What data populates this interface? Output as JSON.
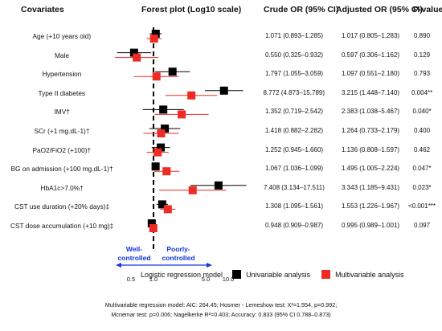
{
  "headers": {
    "covariates": "Covariates",
    "forest": "Forest plot (Log10 scale)",
    "crude": "Crude OR (95% CI)",
    "adjusted": "Adjusted OR (95% CI)",
    "pvalue": "P-value"
  },
  "chart_data": {
    "type": "forest",
    "title": "Forest plot (Log10 scale)",
    "x_scale": "log10",
    "reference_line": 1.0,
    "xlim": [
      0.25,
      20
    ],
    "x_ticks": [
      "0.5",
      "1.0",
      "5.0",
      "10.0"
    ],
    "x_tick_values": [
      0.5,
      1.0,
      5.0,
      10.0
    ],
    "direction_left": "Well-controlled",
    "direction_right": "Poorly-controlled",
    "legend_title": "Logistic regression model",
    "series": [
      {
        "name": "Univariable analysis",
        "color": "#000000"
      },
      {
        "name": "Multivariable analysis",
        "color": "#ee2a24"
      }
    ],
    "rows": [
      {
        "label": "Age (+10 years old)",
        "crude": {
          "or": 1.071,
          "lo": 0.893,
          "hi": 1.285
        },
        "adjusted": {
          "or": 1.017,
          "lo": 0.805,
          "hi": 1.283
        },
        "crude_text": "1.071 (0.893–1.285)",
        "adjusted_text": "1.017 (0.805–1.283)",
        "p": "0.890"
      },
      {
        "label": "Male",
        "crude": {
          "or": 0.55,
          "lo": 0.325,
          "hi": 0.932
        },
        "adjusted": {
          "or": 0.597,
          "lo": 0.306,
          "hi": 1.162
        },
        "crude_text": "0.550 (0.325–0.932)",
        "adjusted_text": "0.597 (0.306–1.162)",
        "p": "0.129"
      },
      {
        "label": "Hypertension",
        "crude": {
          "or": 1.797,
          "lo": 1.055,
          "hi": 3.059
        },
        "adjusted": {
          "or": 1.097,
          "lo": 0.551,
          "hi": 2.18
        },
        "crude_text": "1.797 (1.055–3.059)",
        "adjusted_text": "1.097 (0.551–2.180)",
        "p": "0.793"
      },
      {
        "label": "Type II diabetes",
        "crude": {
          "or": 8.772,
          "lo": 4.873,
          "hi": 15.789
        },
        "adjusted": {
          "or": 3.215,
          "lo": 1.448,
          "hi": 7.14
        },
        "crude_text": "8.772 (4.873–15.789)",
        "adjusted_text": "3.215 (1.448–7.140)",
        "p": "0.004**"
      },
      {
        "label": "IMV†",
        "crude": {
          "or": 1.352,
          "lo": 0.719,
          "hi": 2.542
        },
        "adjusted": {
          "or": 2.383,
          "lo": 1.038,
          "hi": 5.467
        },
        "crude_text": "1.352 (0.719–2.542)",
        "adjusted_text": "2.383 (1.038–5.467)",
        "p": "0.040*"
      },
      {
        "label": "SCr (+1 mg.dL-1)†",
        "crude": {
          "or": 1.418,
          "lo": 0.882,
          "hi": 2.282
        },
        "adjusted": {
          "or": 1.264,
          "lo": 0.733,
          "hi": 2.179
        },
        "crude_text": "1.418 (0.882–2.282)",
        "adjusted_text": "1.264 (0.733–2.179)",
        "p": "0.400"
      },
      {
        "label": "PaO2/FiO2 (+100)†",
        "crude": {
          "or": 1.252,
          "lo": 0.945,
          "hi": 1.66
        },
        "adjusted": {
          "or": 1.136,
          "lo": 0.808,
          "hi": 1.597
        },
        "crude_text": "1.252 (0.945–1.660)",
        "adjusted_text": "1.136 (0.808–1.597)",
        "p": "0.462"
      },
      {
        "label": "BG on admission (+100 mg.dL-1)†",
        "crude": {
          "or": 1.067,
          "lo": 1.036,
          "hi": 1.099
        },
        "adjusted": {
          "or": 1.495,
          "lo": 1.005,
          "hi": 2.224
        },
        "crude_text": "1.067 (1.036–1.099)",
        "adjusted_text": "1.495 (1.005–2.224)",
        "p": "0.047*"
      },
      {
        "label": "HbA1c>7.0%†",
        "crude": {
          "or": 7.408,
          "lo": 3.134,
          "hi": 17.511
        },
        "adjusted": {
          "or": 3.343,
          "lo": 1.185,
          "hi": 9.431
        },
        "crude_text": "7.408 (3.134–17.511)",
        "adjusted_text": "3.343 (1.185–9.431)",
        "p": "0.023*"
      },
      {
        "label": "CST use duration (+20% days)‡",
        "crude": {
          "or": 1.308,
          "lo": 1.095,
          "hi": 1.561
        },
        "adjusted": {
          "or": 1.553,
          "lo": 1.226,
          "hi": 1.967
        },
        "crude_text": "1.308 (1.095–1.561)",
        "adjusted_text": "1.553 (1.226–1.967)",
        "p": "<0.001***"
      },
      {
        "label": "CST dose accumulation (+10 mg)‡",
        "crude": {
          "or": 0.948,
          "lo": 0.909,
          "hi": 0.987
        },
        "adjusted": {
          "or": 0.995,
          "lo": 0.989,
          "hi": 1.001
        },
        "crude_text": "0.948 (0.909–0.987)",
        "adjusted_text": "0.995 (0.989–1.001)",
        "p": "0.097"
      }
    ]
  },
  "footnote": {
    "line1": "Multivariable regression model: AIC: 264.45; Hosmer - Lemeshow test: X²=1.554, p=0.992;",
    "line2": "Mcnemar test: p=0.006; Nagelkerke R²=0.403; Accuracy: 0.833 (95% CI 0.788–0.873)"
  }
}
